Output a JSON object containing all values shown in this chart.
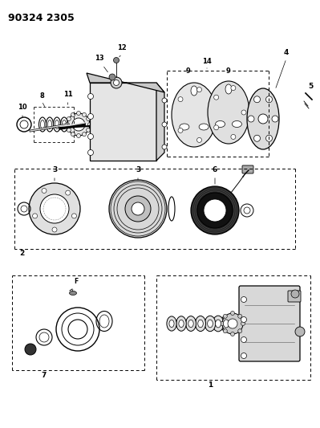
{
  "title": "90324 2305",
  "bg": "#ffffff",
  "title_fs": 9,
  "fig_w": 3.99,
  "fig_h": 5.33,
  "dpi": 100
}
